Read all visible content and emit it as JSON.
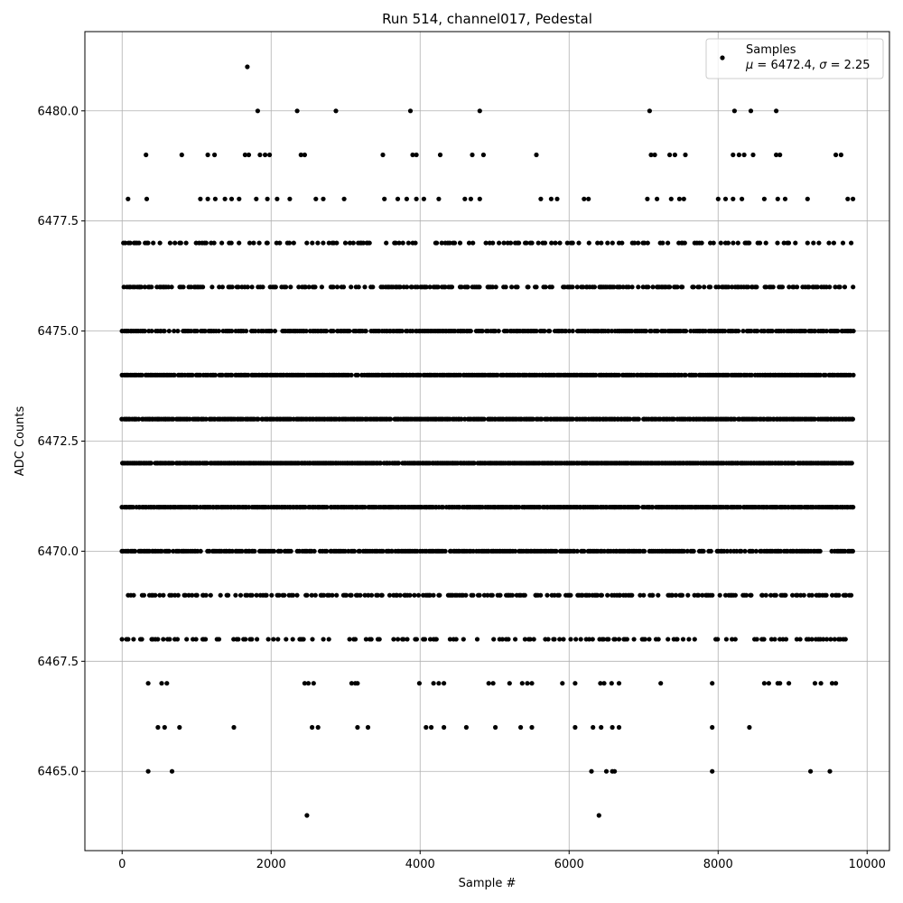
{
  "chart_data": {
    "type": "scatter",
    "title": "Run 514, channel017, Pedestal",
    "xlabel": "Sample #",
    "ylabel": "ADC Counts",
    "xlim": [
      -500,
      10300
    ],
    "ylim": [
      6463.2,
      6481.8
    ],
    "xticks": [
      0,
      2000,
      4000,
      6000,
      8000,
      10000
    ],
    "xtick_labels": [
      "0",
      "2000",
      "4000",
      "6000",
      "8000",
      "10000"
    ],
    "yticks": [
      6465.0,
      6467.5,
      6470.0,
      6472.5,
      6475.0,
      6477.5,
      6480.0
    ],
    "ytick_labels": [
      "6465.0",
      "6467.5",
      "6470.0",
      "6472.5",
      "6475.0",
      "6477.5",
      "6480.0"
    ],
    "grid": true,
    "legend_position": "top-right",
    "marker_color": "#000000",
    "series": [
      {
        "name": "Samples",
        "legend_line2_parts": [
          "μ",
          " = 6472.4, ",
          "σ",
          " = 2.25"
        ],
        "dense_levels": [
          6468,
          6469,
          6470,
          6471,
          6472,
          6473,
          6474,
          6475,
          6476,
          6477
        ],
        "dense_x_range": [
          0,
          9820
        ],
        "sparse_points": [
          {
            "x": 1680,
            "y": 6481
          },
          {
            "x": 1820,
            "y": 6480
          },
          {
            "x": 2350,
            "y": 6480
          },
          {
            "x": 2870,
            "y": 6480
          },
          {
            "x": 3870,
            "y": 6480
          },
          {
            "x": 4800,
            "y": 6480
          },
          {
            "x": 7080,
            "y": 6480
          },
          {
            "x": 8220,
            "y": 6480
          },
          {
            "x": 8440,
            "y": 6480
          },
          {
            "x": 8780,
            "y": 6480
          },
          {
            "x": 320,
            "y": 6479
          },
          {
            "x": 800,
            "y": 6479
          },
          {
            "x": 1150,
            "y": 6479
          },
          {
            "x": 1240,
            "y": 6479
          },
          {
            "x": 1650,
            "y": 6479
          },
          {
            "x": 1700,
            "y": 6479
          },
          {
            "x": 1850,
            "y": 6479
          },
          {
            "x": 1920,
            "y": 6479
          },
          {
            "x": 1980,
            "y": 6479
          },
          {
            "x": 2400,
            "y": 6479
          },
          {
            "x": 2450,
            "y": 6479
          },
          {
            "x": 3500,
            "y": 6479
          },
          {
            "x": 3900,
            "y": 6479
          },
          {
            "x": 3950,
            "y": 6479
          },
          {
            "x": 4270,
            "y": 6479
          },
          {
            "x": 4700,
            "y": 6479
          },
          {
            "x": 4850,
            "y": 6479
          },
          {
            "x": 5560,
            "y": 6479
          },
          {
            "x": 7100,
            "y": 6479
          },
          {
            "x": 7150,
            "y": 6479
          },
          {
            "x": 7350,
            "y": 6479
          },
          {
            "x": 7420,
            "y": 6479
          },
          {
            "x": 7560,
            "y": 6479
          },
          {
            "x": 8200,
            "y": 6479
          },
          {
            "x": 8280,
            "y": 6479
          },
          {
            "x": 8350,
            "y": 6479
          },
          {
            "x": 8470,
            "y": 6479
          },
          {
            "x": 8780,
            "y": 6479
          },
          {
            "x": 8830,
            "y": 6479
          },
          {
            "x": 9580,
            "y": 6479
          },
          {
            "x": 9650,
            "y": 6479
          },
          {
            "x": 80,
            "y": 6478
          },
          {
            "x": 330,
            "y": 6478
          },
          {
            "x": 1050,
            "y": 6478
          },
          {
            "x": 1150,
            "y": 6478
          },
          {
            "x": 1250,
            "y": 6478
          },
          {
            "x": 1380,
            "y": 6478
          },
          {
            "x": 1470,
            "y": 6478
          },
          {
            "x": 1570,
            "y": 6478
          },
          {
            "x": 1800,
            "y": 6478
          },
          {
            "x": 1950,
            "y": 6478
          },
          {
            "x": 2080,
            "y": 6478
          },
          {
            "x": 2250,
            "y": 6478
          },
          {
            "x": 2600,
            "y": 6478
          },
          {
            "x": 2700,
            "y": 6478
          },
          {
            "x": 2980,
            "y": 6478
          },
          {
            "x": 3520,
            "y": 6478
          },
          {
            "x": 3700,
            "y": 6478
          },
          {
            "x": 3820,
            "y": 6478
          },
          {
            "x": 3950,
            "y": 6478
          },
          {
            "x": 4050,
            "y": 6478
          },
          {
            "x": 4250,
            "y": 6478
          },
          {
            "x": 4600,
            "y": 6478
          },
          {
            "x": 4680,
            "y": 6478
          },
          {
            "x": 4800,
            "y": 6478
          },
          {
            "x": 5620,
            "y": 6478
          },
          {
            "x": 5760,
            "y": 6478
          },
          {
            "x": 5840,
            "y": 6478
          },
          {
            "x": 6200,
            "y": 6478
          },
          {
            "x": 6260,
            "y": 6478
          },
          {
            "x": 7050,
            "y": 6478
          },
          {
            "x": 7180,
            "y": 6478
          },
          {
            "x": 7370,
            "y": 6478
          },
          {
            "x": 7480,
            "y": 6478
          },
          {
            "x": 7540,
            "y": 6478
          },
          {
            "x": 8000,
            "y": 6478
          },
          {
            "x": 8100,
            "y": 6478
          },
          {
            "x": 8200,
            "y": 6478
          },
          {
            "x": 8320,
            "y": 6478
          },
          {
            "x": 8620,
            "y": 6478
          },
          {
            "x": 8800,
            "y": 6478
          },
          {
            "x": 8900,
            "y": 6478
          },
          {
            "x": 9200,
            "y": 6478
          },
          {
            "x": 9740,
            "y": 6478
          },
          {
            "x": 9810,
            "y": 6478
          },
          {
            "x": 350,
            "y": 6467
          },
          {
            "x": 530,
            "y": 6467
          },
          {
            "x": 600,
            "y": 6467
          },
          {
            "x": 2450,
            "y": 6467
          },
          {
            "x": 2500,
            "y": 6467
          },
          {
            "x": 2570,
            "y": 6467
          },
          {
            "x": 3080,
            "y": 6467
          },
          {
            "x": 3130,
            "y": 6467
          },
          {
            "x": 3160,
            "y": 6467
          },
          {
            "x": 3990,
            "y": 6467
          },
          {
            "x": 4180,
            "y": 6467
          },
          {
            "x": 4250,
            "y": 6467
          },
          {
            "x": 4320,
            "y": 6467
          },
          {
            "x": 4920,
            "y": 6467
          },
          {
            "x": 4980,
            "y": 6467
          },
          {
            "x": 5200,
            "y": 6467
          },
          {
            "x": 5370,
            "y": 6467
          },
          {
            "x": 5440,
            "y": 6467
          },
          {
            "x": 5500,
            "y": 6467
          },
          {
            "x": 5910,
            "y": 6467
          },
          {
            "x": 6080,
            "y": 6467
          },
          {
            "x": 6420,
            "y": 6467
          },
          {
            "x": 6470,
            "y": 6467
          },
          {
            "x": 6570,
            "y": 6467
          },
          {
            "x": 6670,
            "y": 6467
          },
          {
            "x": 7230,
            "y": 6467
          },
          {
            "x": 7920,
            "y": 6467
          },
          {
            "x": 8620,
            "y": 6467
          },
          {
            "x": 8680,
            "y": 6467
          },
          {
            "x": 8800,
            "y": 6467
          },
          {
            "x": 8830,
            "y": 6467
          },
          {
            "x": 8950,
            "y": 6467
          },
          {
            "x": 9300,
            "y": 6467
          },
          {
            "x": 9380,
            "y": 6467
          },
          {
            "x": 9530,
            "y": 6467
          },
          {
            "x": 9580,
            "y": 6467
          },
          {
            "x": 480,
            "y": 6466
          },
          {
            "x": 570,
            "y": 6466
          },
          {
            "x": 770,
            "y": 6466
          },
          {
            "x": 1500,
            "y": 6466
          },
          {
            "x": 2550,
            "y": 6466
          },
          {
            "x": 2630,
            "y": 6466
          },
          {
            "x": 3160,
            "y": 6466
          },
          {
            "x": 3300,
            "y": 6466
          },
          {
            "x": 4080,
            "y": 6466
          },
          {
            "x": 4150,
            "y": 6466
          },
          {
            "x": 4320,
            "y": 6466
          },
          {
            "x": 4620,
            "y": 6466
          },
          {
            "x": 5010,
            "y": 6466
          },
          {
            "x": 5350,
            "y": 6466
          },
          {
            "x": 5500,
            "y": 6466
          },
          {
            "x": 6080,
            "y": 6466
          },
          {
            "x": 6320,
            "y": 6466
          },
          {
            "x": 6430,
            "y": 6466
          },
          {
            "x": 6580,
            "y": 6466
          },
          {
            "x": 6670,
            "y": 6466
          },
          {
            "x": 7920,
            "y": 6466
          },
          {
            "x": 8420,
            "y": 6466
          },
          {
            "x": 350,
            "y": 6465
          },
          {
            "x": 670,
            "y": 6465
          },
          {
            "x": 6300,
            "y": 6465
          },
          {
            "x": 6500,
            "y": 6465
          },
          {
            "x": 6580,
            "y": 6465
          },
          {
            "x": 6610,
            "y": 6465
          },
          {
            "x": 7920,
            "y": 6465
          },
          {
            "x": 9240,
            "y": 6465
          },
          {
            "x": 9500,
            "y": 6465
          },
          {
            "x": 2480,
            "y": 6464
          },
          {
            "x": 6400,
            "y": 6464
          }
        ]
      }
    ]
  }
}
